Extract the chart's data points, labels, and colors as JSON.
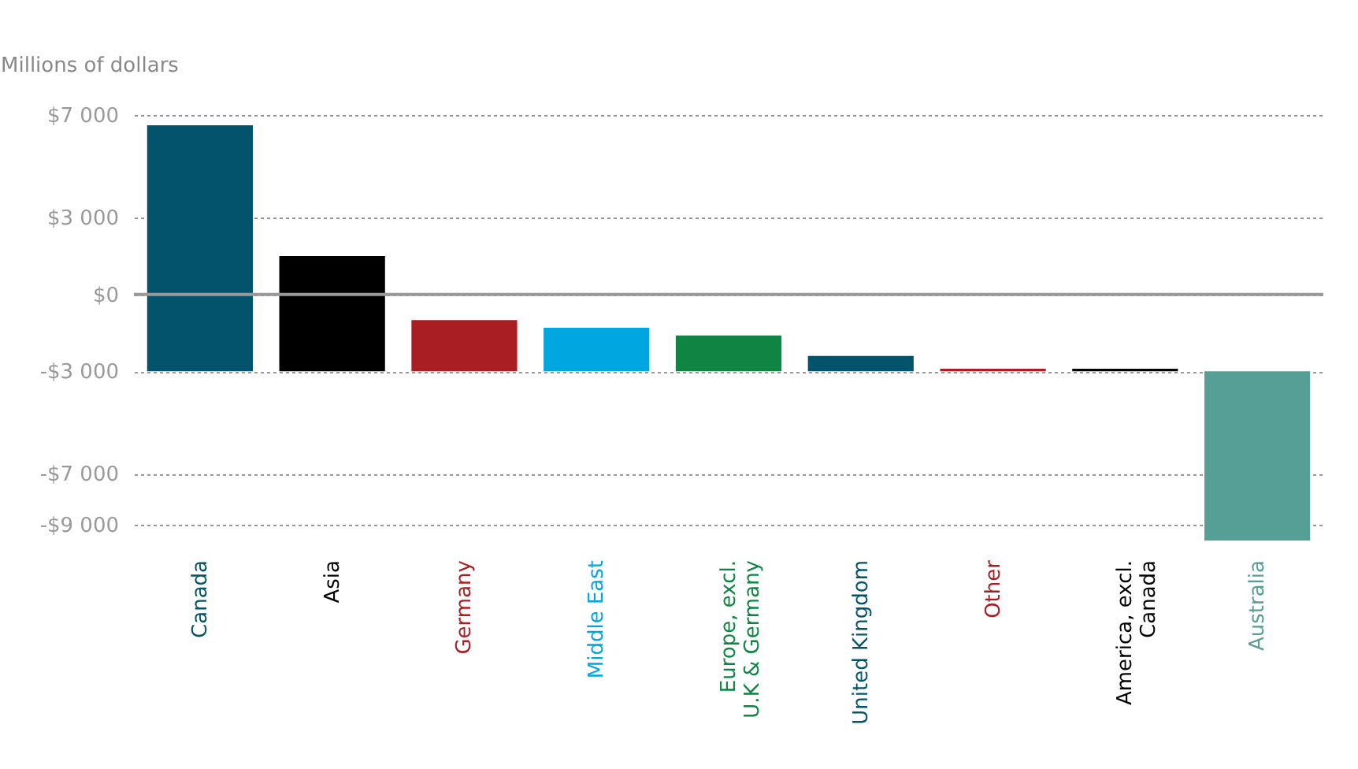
{
  "chart_data": {
    "type": "bar",
    "ylabel": "Millions of dollars",
    "categories": [
      "Canada",
      "Asia",
      "Germany",
      "Middle East",
      "Europe, excl. U.K & Germany",
      "United Kingdom",
      "Other",
      "America, excl. Canada",
      "Australia"
    ],
    "base": [
      -3000,
      -3000,
      -3000,
      -3000,
      -3000,
      -3000,
      -3000,
      -3000,
      -3000
    ],
    "values": [
      9600,
      4500,
      2000,
      1700,
      1400,
      600,
      100,
      100,
      -6600
    ],
    "colors": [
      "#02536b",
      "#000000",
      "#a81e22",
      "#00a6e0",
      "#0f8443",
      "#02536b",
      "#a81e22",
      "#000000",
      "#569f96"
    ],
    "ylim": [
      -9600,
      7000
    ],
    "yticks": [
      {
        "value": -9000,
        "label": "-$9 000"
      },
      {
        "value": -7000,
        "label": "-$7 000"
      },
      {
        "value": -3000,
        "label": "-$3 000"
      },
      {
        "value": 0,
        "label": "$0"
      },
      {
        "value": 3000,
        "label": "$3 000"
      },
      {
        "value": 7000,
        "label": "$7 000"
      }
    ],
    "ref_lines": [
      {
        "axis": "y",
        "value": 0,
        "color": "#999999",
        "line_style": "solid"
      }
    ],
    "grid": "y"
  }
}
